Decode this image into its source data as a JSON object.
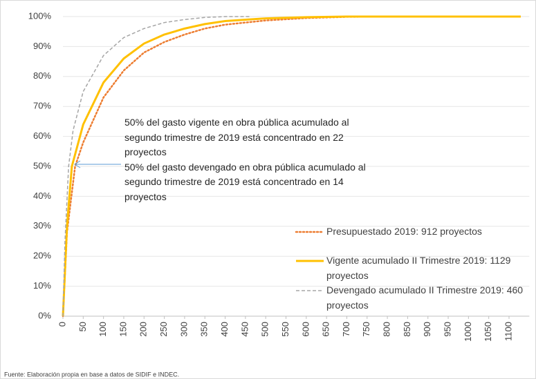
{
  "chart_data": {
    "type": "line",
    "xlim": [
      0,
      1150
    ],
    "ylim": [
      0,
      100
    ],
    "xticks": [
      0,
      50,
      100,
      150,
      200,
      250,
      300,
      350,
      400,
      450,
      500,
      550,
      600,
      650,
      700,
      750,
      800,
      850,
      900,
      950,
      1000,
      1050,
      1100
    ],
    "yticks": [
      {
        "value": 0,
        "label": "0%"
      },
      {
        "value": 10,
        "label": "10%"
      },
      {
        "value": 20,
        "label": "20%"
      },
      {
        "value": 30,
        "label": "30%"
      },
      {
        "value": 40,
        "label": "40%"
      },
      {
        "value": 50,
        "label": "50%"
      },
      {
        "value": 60,
        "label": "60%"
      },
      {
        "value": 70,
        "label": "70%"
      },
      {
        "value": 80,
        "label": "80%"
      },
      {
        "value": 90,
        "label": "90%"
      },
      {
        "value": 100,
        "label": "100%"
      }
    ],
    "grid": true,
    "series": [
      {
        "name": "Presupuestado 2019: 912 proyectos",
        "color": "#ed7d31",
        "dash": "dotted",
        "x": [
          0,
          10,
          30,
          50,
          100,
          150,
          200,
          250,
          300,
          350,
          400,
          500,
          600,
          700,
          800,
          912
        ],
        "values": [
          0,
          28,
          50,
          58,
          73,
          82,
          88,
          91.5,
          94,
          96,
          97.3,
          98.7,
          99.5,
          99.9,
          100,
          100
        ]
      },
      {
        "name": "Vigente acumulado II Trimestre 2019: 1129 proyectos",
        "color": "#ffc000",
        "dash": "solid",
        "x": [
          0,
          10,
          22,
          50,
          100,
          150,
          200,
          250,
          300,
          350,
          400,
          500,
          600,
          700,
          1129
        ],
        "values": [
          0,
          30,
          50,
          64,
          78,
          86,
          91,
          94,
          96,
          97.5,
          98.5,
          99.4,
          99.8,
          100,
          100
        ]
      },
      {
        "name": "Devengado acumulado II Trimestre 2019: 460 proyectos",
        "color": "#a5a5a5",
        "dash": "dashed",
        "x": [
          0,
          5,
          14,
          25,
          50,
          100,
          150,
          200,
          250,
          300,
          350,
          400,
          460
        ],
        "values": [
          0,
          25,
          50,
          62,
          75,
          87,
          93,
          96,
          98,
          99,
          99.7,
          100,
          100
        ]
      }
    ],
    "annotations": [
      "50% del gasto vigente en obra pública acumulado al segundo trimestre de 2019 está concentrado en 22 proyectos",
      "50% del gasto devengado en obra pública acumulado al segundo trimestre de 2019 está concentrado en 14 proyectos"
    ],
    "source": "Fuente: Elaboración propia en base a datos de SIDIF e INDEC."
  }
}
